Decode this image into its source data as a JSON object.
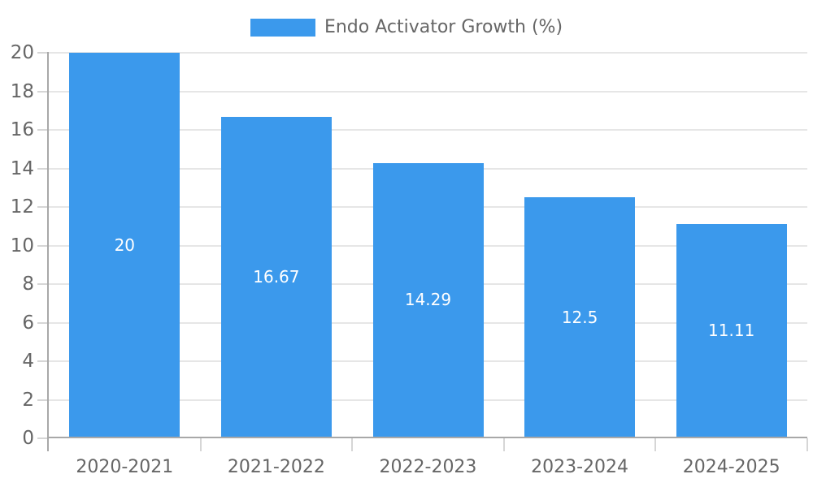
{
  "legend": {
    "label": "Endo Activator Growth (%)"
  },
  "colors": {
    "bar": "#3B99EC",
    "axis_line": "#A8A8A8",
    "grid_line": "#E6E6E6",
    "tick_line": "#D6D6D6",
    "axis_text": "#666666",
    "value_text": "#FFFFFF"
  },
  "chart_data": {
    "type": "bar",
    "title": "",
    "series_name": "Endo Activator Growth (%)",
    "categories": [
      "2020-2021",
      "2021-2022",
      "2022-2023",
      "2023-2024",
      "2024-2025"
    ],
    "values": [
      20,
      16.67,
      14.29,
      12.5,
      11.11
    ],
    "value_labels": [
      "20",
      "16.67",
      "14.29",
      "12.5",
      "11.11"
    ],
    "ylim": [
      0,
      20
    ],
    "yticks": [
      0,
      2,
      4,
      6,
      8,
      10,
      12,
      14,
      16,
      18,
      20
    ],
    "grid": true,
    "legend_position": "top",
    "value_label_position": "center-of-bar"
  }
}
